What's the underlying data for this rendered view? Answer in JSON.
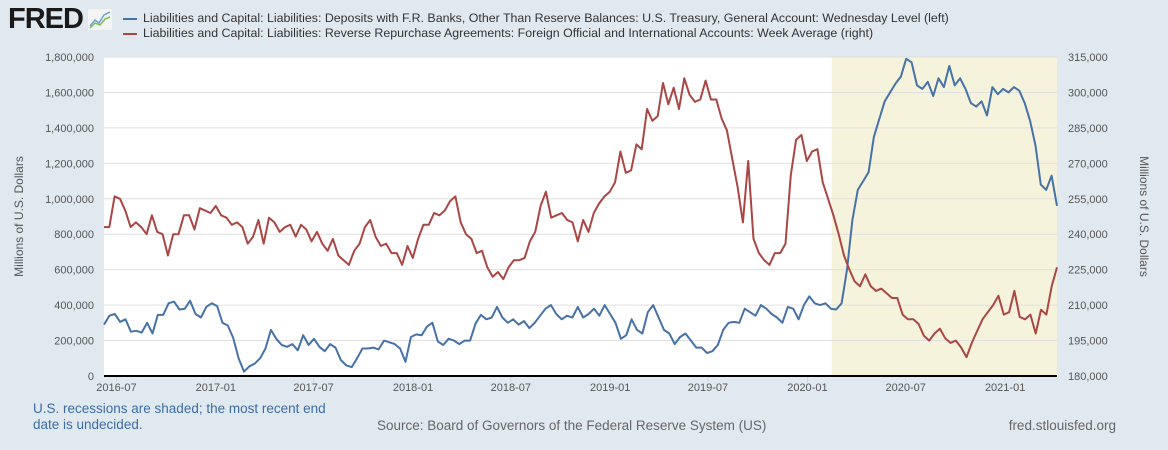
{
  "header": {
    "logo_text": "FRED",
    "logo_icon": "fred-chart-icon"
  },
  "legend": [
    {
      "label": "Liabilities and Capital: Liabilities: Deposits with F.R. Banks, Other Than Reserve Balances: U.S. Treasury, General Account: Wednesday Level (left)",
      "color": "#4572a7"
    },
    {
      "label": "Liabilities and Capital: Liabilities: Reverse Repurchase Agreements: Foreign Official and International Accounts: Week Average (right)",
      "color": "#aa4643"
    }
  ],
  "footer": {
    "recession_note": "U.S. recessions are shaded; the most recent end date is undecided.",
    "source": "Source: Board of Governors of the Federal Reserve System (US)",
    "site": "fred.stlouisfed.org"
  },
  "chart_data": {
    "type": "line",
    "title": "",
    "x_start": "2016-06-08",
    "x_end": "2021-04-07",
    "x_ticks": [
      "2016-07",
      "2017-01",
      "2017-07",
      "2018-01",
      "2018-07",
      "2019-01",
      "2019-07",
      "2020-01",
      "2020-07",
      "2021-01"
    ],
    "ylabel_left": "Millions of U.S. Dollars",
    "ylabel_right": "Millions of U.S. Dollars",
    "ylim_left": [
      0,
      1800000
    ],
    "ylim_right": [
      180000,
      315000
    ],
    "yticks_left": [
      "0",
      "200,000",
      "400,000",
      "600,000",
      "800,000",
      "1,000,000",
      "1,200,000",
      "1,400,000",
      "1,600,000",
      "1,800,000"
    ],
    "yticks_right": [
      "180,000",
      "195,000",
      "210,000",
      "225,000",
      "240,000",
      "255,000",
      "270,000",
      "285,000",
      "300,000",
      "315,000"
    ],
    "grid": true,
    "recession_shading": {
      "start": "2020-02-15",
      "end": "2021-04-07",
      "color": "#f5f3dc"
    },
    "series": [
      {
        "name": "Treasury General Account (left)",
        "axis": "left",
        "color": "#4572a7",
        "frequency": "biweekly",
        "values": [
          290000,
          340000,
          350000,
          305000,
          320000,
          250000,
          255000,
          245000,
          300000,
          240000,
          345000,
          345000,
          410000,
          420000,
          375000,
          380000,
          425000,
          350000,
          330000,
          390000,
          410000,
          395000,
          300000,
          285000,
          215000,
          100000,
          25000,
          55000,
          70000,
          100000,
          155000,
          260000,
          210000,
          175000,
          165000,
          180000,
          145000,
          230000,
          175000,
          210000,
          165000,
          140000,
          180000,
          160000,
          90000,
          60000,
          50000,
          100000,
          155000,
          155000,
          160000,
          150000,
          200000,
          190000,
          180000,
          155000,
          80000,
          220000,
          235000,
          230000,
          280000,
          300000,
          195000,
          175000,
          210000,
          200000,
          180000,
          200000,
          200000,
          295000,
          345000,
          320000,
          330000,
          390000,
          330000,
          300000,
          320000,
          290000,
          310000,
          270000,
          300000,
          340000,
          380000,
          400000,
          350000,
          320000,
          340000,
          330000,
          390000,
          330000,
          350000,
          380000,
          340000,
          400000,
          350000,
          300000,
          210000,
          230000,
          320000,
          260000,
          240000,
          360000,
          400000,
          330000,
          260000,
          240000,
          180000,
          220000,
          240000,
          200000,
          160000,
          160000,
          130000,
          140000,
          175000,
          260000,
          300000,
          305000,
          300000,
          380000,
          360000,
          340000,
          400000,
          380000,
          350000,
          330000,
          300000,
          390000,
          380000,
          320000,
          400000,
          450000,
          410000,
          400000,
          410000,
          380000,
          375000,
          410000,
          600000,
          880000,
          1050000,
          1100000,
          1150000,
          1350000,
          1450000,
          1550000,
          1600000,
          1650000,
          1690000,
          1790000,
          1770000,
          1640000,
          1620000,
          1660000,
          1580000,
          1680000,
          1630000,
          1750000,
          1640000,
          1680000,
          1620000,
          1540000,
          1520000,
          1550000,
          1470000,
          1630000,
          1590000,
          1620000,
          1600000,
          1630000,
          1610000,
          1540000,
          1440000,
          1300000,
          1080000,
          1050000,
          1130000,
          960000
        ]
      },
      {
        "name": "Reverse Repo Foreign Official (right)",
        "axis": "right",
        "color": "#aa4643",
        "frequency": "biweekly",
        "values": [
          243000,
          243000,
          256000,
          255000,
          250000,
          243000,
          245000,
          243000,
          240000,
          248000,
          241000,
          240000,
          231000,
          240000,
          240000,
          248000,
          248000,
          242000,
          251000,
          250000,
          249000,
          252000,
          248000,
          247000,
          244000,
          245000,
          243000,
          236000,
          239000,
          246000,
          236000,
          247000,
          245000,
          241000,
          243000,
          244000,
          239000,
          244000,
          242000,
          237000,
          241000,
          236000,
          233000,
          238000,
          231000,
          229000,
          227000,
          233000,
          236000,
          243000,
          246000,
          239000,
          235000,
          236000,
          232000,
          232000,
          227000,
          235000,
          230000,
          238000,
          244000,
          244000,
          249000,
          248000,
          250000,
          254000,
          256000,
          245000,
          240000,
          238000,
          232000,
          233000,
          226000,
          222000,
          224000,
          221000,
          226000,
          229000,
          229000,
          230000,
          237000,
          241000,
          252000,
          258000,
          247000,
          248000,
          249000,
          246000,
          245000,
          237000,
          246000,
          241000,
          249000,
          253000,
          256000,
          258000,
          262000,
          275000,
          266000,
          267000,
          278000,
          276000,
          293000,
          288000,
          290000,
          304000,
          295000,
          302000,
          293000,
          306000,
          299000,
          296000,
          297000,
          305000,
          297000,
          297000,
          289000,
          284000,
          272000,
          260000,
          245000,
          271000,
          238000,
          232000,
          229000,
          227000,
          232000,
          232000,
          236000,
          265000,
          280000,
          282000,
          271000,
          275000,
          276000,
          262000,
          255000,
          248000,
          240000,
          231000,
          225000,
          220000,
          218000,
          223000,
          218000,
          216000,
          217000,
          215000,
          213000,
          213000,
          206000,
          204000,
          204000,
          202000,
          197000,
          195000,
          198000,
          200000,
          196000,
          194000,
          195000,
          192000,
          188000,
          194000,
          199000,
          204000,
          207000,
          210000,
          214000,
          206000,
          207000,
          216000,
          205000,
          204000,
          206000,
          198000,
          208000,
          206000,
          218000,
          226000
        ]
      }
    ]
  }
}
